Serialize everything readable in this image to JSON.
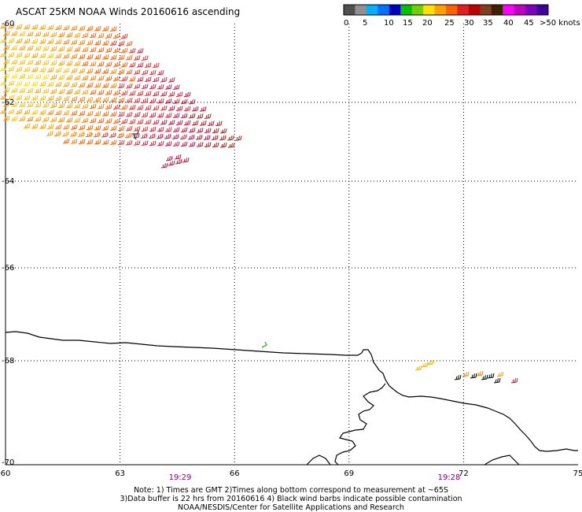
{
  "title": "ASCAT 25KM NOAA Winds 20160616 ascending",
  "colorbar": {
    "colors": [
      "#505050",
      "#909090",
      "#00b0ff",
      "#0070ff",
      "#0000c0",
      "#00c000",
      "#70d000",
      "#ffe000",
      "#ffa000",
      "#ff6000",
      "#e02020",
      "#c00000",
      "#804020",
      "#402000",
      "#ff00ff",
      "#c000c0",
      "#8000c0",
      "#4000a0"
    ],
    "labels": [
      "0",
      "5",
      "10",
      "15",
      "20",
      "25",
      "30",
      "35",
      "40",
      "45",
      ">50 knots"
    ]
  },
  "axes": {
    "lon_labels": [
      "60",
      "63",
      "66",
      "69",
      "72",
      "75"
    ],
    "lat_labels": [
      "-60",
      "-62",
      "-64",
      "-66",
      "-68",
      "-70"
    ],
    "lon_range": [
      60,
      75
    ],
    "lat_range": [
      -60,
      -70
    ]
  },
  "times": [
    "19:29",
    "19:28"
  ],
  "notes": [
    "Note: 1) Times are GMT 2)Times along bottom correspond to measurement at ~65S",
    "3)Data buffer is 22 hrs from 20160616 4) Black wind barbs indicate possible contamination",
    "NOAA/NESDIS/Center for Satellite Applications and Research"
  ]
}
